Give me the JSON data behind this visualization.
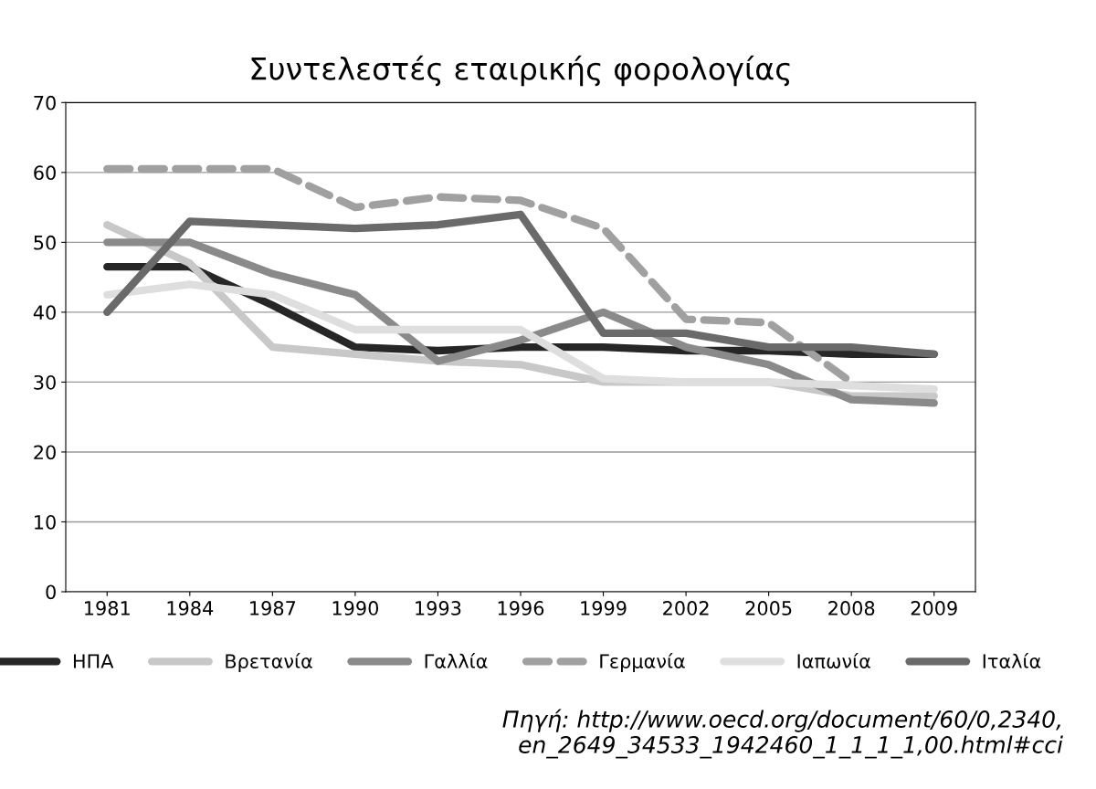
{
  "chart_data": {
    "type": "line",
    "title": "Συντελεστές εταιρικής φορολογίας",
    "categories": [
      "1981",
      "1984",
      "1987",
      "1990",
      "1993",
      "1996",
      "1999",
      "2002",
      "2005",
      "2008",
      "2009"
    ],
    "series": [
      {
        "name": "ΗΠΑ",
        "color": "#262626",
        "values": [
          46.5,
          46.5,
          41,
          35,
          34.5,
          35,
          35,
          34.5,
          34.5,
          34,
          34
        ]
      },
      {
        "name": "Βρετανία",
        "color": "#c8c8c8",
        "values": [
          52.5,
          47,
          35,
          34,
          33,
          32.5,
          30,
          30,
          30,
          28,
          28
        ]
      },
      {
        "name": "Γαλλία",
        "color": "#8a8a8a",
        "values": [
          50,
          50,
          45.5,
          42.5,
          33,
          36,
          40,
          35,
          32.5,
          27.5,
          27
        ]
      },
      {
        "name": "Γερμανία",
        "color": "#a0a0a0",
        "line_style": "dashed",
        "values": [
          60.5,
          60.5,
          60.5,
          55,
          56.5,
          56,
          52,
          39,
          38.5,
          30,
          null
        ]
      },
      {
        "name": "Ιαπωνία",
        "color": "#dedede",
        "values": [
          42.5,
          44,
          42.5,
          37.5,
          37.5,
          37.5,
          30.5,
          30,
          30,
          29.5,
          29
        ]
      },
      {
        "name": "Ιταλία",
        "color": "#6a6a6a",
        "values": [
          40,
          53,
          52.5,
          52,
          52.5,
          54,
          37,
          37,
          35,
          35,
          34
        ]
      }
    ],
    "ylim": [
      0,
      70
    ],
    "yticks": [
      0,
      10,
      20,
      30,
      40,
      50,
      60,
      70
    ],
    "grid": "y",
    "legend": "bottom",
    "line_style": "solid",
    "marker": "none",
    "annotations": [
      "Πηγή: http://www.oecd.org/document/60/0,2340,\nen_2649_34533_1942460_1_1_1_1,00.html#cci"
    ]
  }
}
